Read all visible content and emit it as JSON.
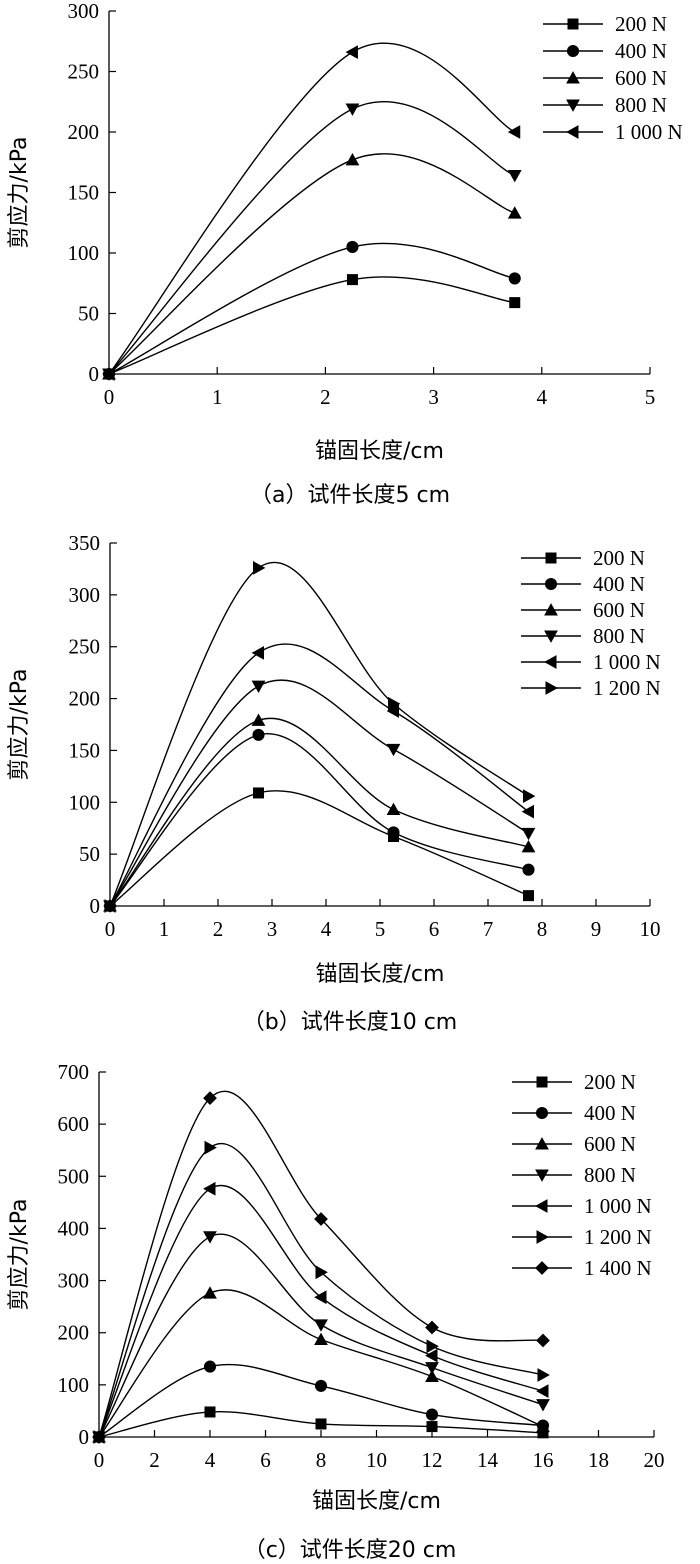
{
  "chart_data": [
    {
      "type": "line",
      "caption": "（a）试件长度5 cm",
      "xlabel": "锚固长度/cm",
      "ylabel": "剪应力/kPa",
      "xlim": [
        0,
        5
      ],
      "ylim": [
        0,
        300
      ],
      "xticks": [
        0,
        1,
        2,
        3,
        4,
        5
      ],
      "yticks": [
        0,
        50,
        100,
        150,
        200,
        250,
        300
      ],
      "x": [
        0,
        2.25,
        3.75
      ],
      "series": [
        {
          "name": "200 N",
          "marker": "square",
          "values": [
            0,
            78,
            59
          ]
        },
        {
          "name": "400 N",
          "marker": "circle",
          "values": [
            0,
            105,
            79
          ]
        },
        {
          "name": "600 N",
          "marker": "triangle-up",
          "values": [
            0,
            177,
            133
          ]
        },
        {
          "name": "800 N",
          "marker": "triangle-down",
          "values": [
            0,
            219,
            164
          ]
        },
        {
          "name": "1 000 N",
          "marker": "triangle-left",
          "values": [
            0,
            266,
            200
          ]
        }
      ]
    },
    {
      "type": "line",
      "caption": "（b）试件长度10 cm",
      "xlabel": "锚固长度/cm",
      "ylabel": "剪应力/kPa",
      "xlim": [
        0,
        10
      ],
      "ylim": [
        0,
        350
      ],
      "xticks": [
        0,
        1,
        2,
        3,
        4,
        5,
        6,
        7,
        8,
        9,
        10
      ],
      "yticks": [
        0,
        50,
        100,
        150,
        200,
        250,
        300,
        350
      ],
      "x": [
        0,
        2.75,
        5.25,
        7.75
      ],
      "series": [
        {
          "name": "200 N",
          "marker": "square",
          "values": [
            0,
            109,
            67,
            10
          ]
        },
        {
          "name": "400 N",
          "marker": "circle",
          "values": [
            0,
            165,
            71,
            35
          ]
        },
        {
          "name": "600 N",
          "marker": "triangle-up",
          "values": [
            0,
            179,
            93,
            57
          ]
        },
        {
          "name": "800 N",
          "marker": "triangle-down",
          "values": [
            0,
            212,
            151,
            70
          ]
        },
        {
          "name": "1 000 N",
          "marker": "triangle-left",
          "values": [
            0,
            244,
            188,
            91
          ]
        },
        {
          "name": "1 200 N",
          "marker": "triangle-right",
          "values": [
            0,
            326,
            195,
            106
          ]
        }
      ]
    },
    {
      "type": "line",
      "caption": "（c）试件长度20 cm",
      "xlabel": "锚固长度/cm",
      "ylabel": "剪应力/kPa",
      "xlim": [
        0,
        20
      ],
      "ylim": [
        0,
        700
      ],
      "xticks": [
        0,
        2,
        4,
        6,
        8,
        10,
        12,
        14,
        16,
        18,
        20
      ],
      "yticks": [
        0,
        100,
        200,
        300,
        400,
        500,
        600,
        700
      ],
      "x": [
        0,
        4,
        8,
        12,
        16
      ],
      "series": [
        {
          "name": "200 N",
          "marker": "square",
          "values": [
            0,
            48,
            25,
            20,
            8
          ]
        },
        {
          "name": "400 N",
          "marker": "circle",
          "values": [
            0,
            135,
            98,
            43,
            22
          ]
        },
        {
          "name": "600 N",
          "marker": "triangle-up",
          "values": [
            0,
            276,
            187,
            116,
            20
          ]
        },
        {
          "name": "800 N",
          "marker": "triangle-down",
          "values": [
            0,
            384,
            215,
            133,
            62
          ]
        },
        {
          "name": "1 000 N",
          "marker": "triangle-left",
          "values": [
            0,
            476,
            268,
            156,
            88
          ]
        },
        {
          "name": "1 200 N",
          "marker": "triangle-right",
          "values": [
            0,
            555,
            316,
            174,
            119
          ]
        },
        {
          "name": "1 400 N",
          "marker": "diamond",
          "values": [
            0,
            650,
            418,
            210,
            185
          ]
        }
      ]
    }
  ]
}
